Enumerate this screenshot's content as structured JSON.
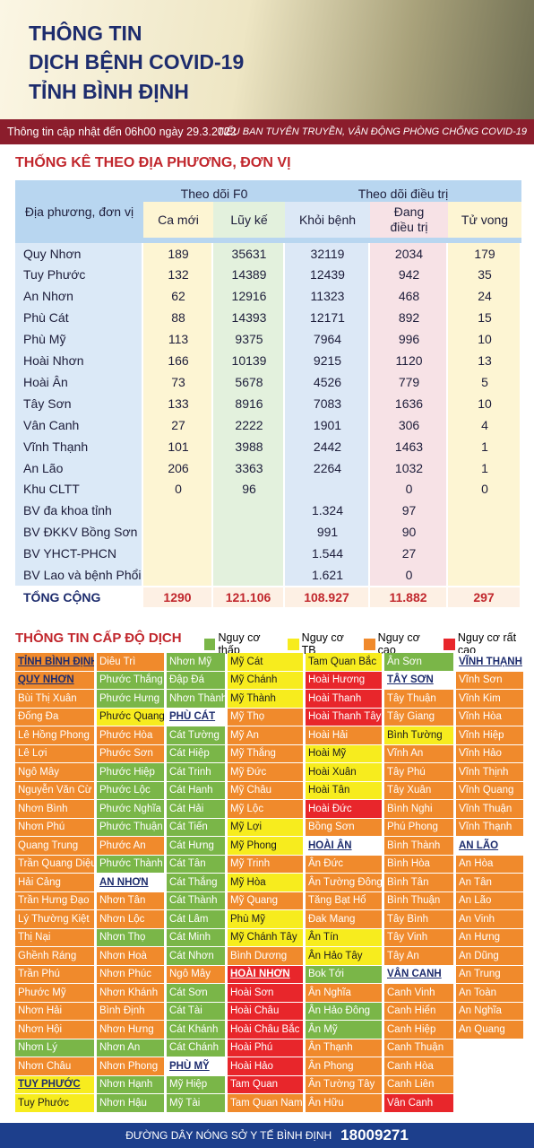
{
  "header": {
    "title_lines": [
      "THÔNG TIN",
      "DỊCH BỆNH COVID-19",
      "TỈNH BÌNH ĐỊNH"
    ],
    "update": "Thông tin cập nhật đến 06h00 ngày 29.3.2022",
    "source": "TIỂU BAN TUYÊN TRUYỀN, VẬN ĐỘNG PHÒNG CHỐNG COVID-19"
  },
  "table": {
    "title": "THỐNG KÊ THEO ĐỊA PHƯƠNG, ĐƠN VỊ",
    "name_header": "Địa phương, đơn vị",
    "group_headers": [
      "Theo dõi F0",
      "Theo dõi điều trị"
    ],
    "col_headers": [
      "Ca mới",
      "Lũy kế",
      "Khỏi bệnh",
      "Đang\nđiều trị",
      "Tử vong"
    ],
    "rows": [
      [
        "Quy Nhơn",
        "189",
        "35631",
        "32119",
        "2034",
        "179"
      ],
      [
        "Tuy Phước",
        "132",
        "14389",
        "12439",
        "942",
        "35"
      ],
      [
        "An Nhơn",
        "62",
        "12916",
        "11323",
        "468",
        "24"
      ],
      [
        "Phù Cát",
        "88",
        "14393",
        "12171",
        "892",
        "15"
      ],
      [
        "Phù Mỹ",
        "113",
        "9375",
        "7964",
        "996",
        "10"
      ],
      [
        "Hoài Nhơn",
        "166",
        "10139",
        "9215",
        "1120",
        "13"
      ],
      [
        "Hoài Ân",
        "73",
        "5678",
        "4526",
        "779",
        "5"
      ],
      [
        "Tây Sơn",
        "133",
        "8916",
        "7083",
        "1636",
        "10"
      ],
      [
        "Vân Canh",
        "27",
        "2222",
        "1901",
        "306",
        "4"
      ],
      [
        "Vĩnh Thạnh",
        "101",
        "3988",
        "2442",
        "1463",
        "1"
      ],
      [
        "An Lão",
        "206",
        "3363",
        "2264",
        "1032",
        "1"
      ],
      [
        "Khu  CLTT",
        "0",
        "96",
        null,
        "0",
        "0"
      ],
      [
        "BV đa khoa tỉnh",
        null,
        null,
        "1.324",
        "97",
        null
      ],
      [
        "BV ĐKKV Bồng Sơn",
        null,
        null,
        "991",
        "90",
        null
      ],
      [
        "BV YHCT-PHCN",
        null,
        null,
        "1.544",
        "27",
        null
      ],
      [
        "BV Lao và bệnh Phổi",
        null,
        null,
        "1.621",
        "0",
        null
      ]
    ],
    "total": [
      "TỔNG CỘNG",
      "1290",
      "121.106",
      "108.927",
      "11.882",
      "297"
    ]
  },
  "levels": {
    "title": "THÔNG TIN CẤP ĐỘ DỊCH",
    "legend": [
      {
        "key": "g",
        "label": "Nguy cơ thấp",
        "color": "#7ab648"
      },
      {
        "key": "y",
        "label": "Nguy cơ TB",
        "color": "#f7ec1e"
      },
      {
        "key": "o",
        "label": "Nguy cơ cao",
        "color": "#f08a2c"
      },
      {
        "key": "r",
        "label": "Nguy cơ rất cao",
        "color": "#e8262b"
      }
    ],
    "columns": [
      [
        [
          "TỈNH BÌNH ĐỊNH",
          "o",
          1
        ],
        [
          "QUY NHƠN",
          "o",
          1
        ],
        [
          "Bùi Thị Xuân",
          "o"
        ],
        [
          "Đống Đa",
          "o"
        ],
        [
          "Lê Hồng Phong",
          "o"
        ],
        [
          "Lê Lợi",
          "o"
        ],
        [
          "Ngô Mây",
          "o"
        ],
        [
          "Nguyễn Văn Cừ",
          "o"
        ],
        [
          "Nhơn Bình",
          "o"
        ],
        [
          "Nhơn Phú",
          "o"
        ],
        [
          "Quang Trung",
          "o"
        ],
        [
          "Trần Quang Diệu",
          "o"
        ],
        [
          "Hải Cảng",
          "o"
        ],
        [
          "Trần Hưng Đạo",
          "o"
        ],
        [
          "Lý Thường Kiệt",
          "o"
        ],
        [
          "Thị Nại",
          "o"
        ],
        [
          "Ghềnh Ráng",
          "o"
        ],
        [
          "Trần Phú",
          "o"
        ],
        [
          "Phước Mỹ",
          "o"
        ],
        [
          "Nhơn Hải",
          "o"
        ],
        [
          "Nhơn Hội",
          "o"
        ],
        [
          "Nhơn Lý",
          "g"
        ],
        [
          "Nhơn Châu",
          "o"
        ],
        [
          "TUY PHƯỚC",
          "y",
          1
        ],
        [
          "Tuy Phước",
          "y"
        ]
      ],
      [
        [
          "Diêu Trì",
          "o"
        ],
        [
          "Phước Thắng",
          "g"
        ],
        [
          "Phước Hưng",
          "g"
        ],
        [
          "Phước Quang",
          "y"
        ],
        [
          "Phước Hòa",
          "o"
        ],
        [
          "Phước Sơn",
          "o"
        ],
        [
          "Phước Hiệp",
          "g"
        ],
        [
          "Phước Lộc",
          "g"
        ],
        [
          "Phước Nghĩa",
          "g"
        ],
        [
          "Phước Thuận",
          "g"
        ],
        [
          "Phước An",
          "o"
        ],
        [
          "Phước Thành",
          "g"
        ],
        [
          "AN NHƠN",
          null,
          1
        ],
        [
          "Nhơn Tân",
          "o"
        ],
        [
          "Nhơn Lộc",
          "o"
        ],
        [
          "Nhơn Thọ",
          "g"
        ],
        [
          "Nhơn Hoà",
          "o"
        ],
        [
          "Nhơn Phúc",
          "o"
        ],
        [
          "Nhơn Khánh",
          "o"
        ],
        [
          "Bình Định",
          "o"
        ],
        [
          "Nhơn Hưng",
          "o"
        ],
        [
          "Nhơn An",
          "g"
        ],
        [
          "Nhơn Phong",
          "o"
        ],
        [
          "Nhơn Hạnh",
          "g"
        ],
        [
          "Nhơn Hậu",
          "g"
        ]
      ],
      [
        [
          "Nhơn Mỹ",
          "g"
        ],
        [
          "Đập Đá",
          "g"
        ],
        [
          "Nhơn Thành",
          "g"
        ],
        [
          "PHÙ CÁT",
          null,
          1
        ],
        [
          "Cát Tường",
          "g"
        ],
        [
          "Cát Hiệp",
          "g"
        ],
        [
          "Cát Trinh",
          "g"
        ],
        [
          "Cát Hanh",
          "g"
        ],
        [
          "Cát Hải",
          "g"
        ],
        [
          "Cát Tiến",
          "g"
        ],
        [
          "Cát Hưng",
          "g"
        ],
        [
          "Cát Tân",
          "g"
        ],
        [
          "Cát Thắng",
          "g"
        ],
        [
          "Cát Thành",
          "g"
        ],
        [
          "Cát Lâm",
          "g"
        ],
        [
          "Cát Minh",
          "g"
        ],
        [
          "Cát Nhơn",
          "g"
        ],
        [
          "Ngô Mây",
          "o"
        ],
        [
          "Cát Sơn",
          "g"
        ],
        [
          "Cát Tài",
          "g"
        ],
        [
          "Cát Khánh",
          "g"
        ],
        [
          "Cát Chánh",
          "g"
        ],
        [
          "PHÙ MỸ",
          null,
          1
        ],
        [
          "Mỹ Hiệp",
          "g"
        ],
        [
          "Mỹ Tài",
          "g"
        ]
      ],
      [
        [
          "Mỹ Cát",
          "y"
        ],
        [
          "Mỹ Chánh",
          "y"
        ],
        [
          "Mỹ Thành",
          "y"
        ],
        [
          "Mỹ Thọ",
          "o"
        ],
        [
          "Mỹ An",
          "o"
        ],
        [
          "Mỹ Thắng",
          "o"
        ],
        [
          "Mỹ Đức",
          "o"
        ],
        [
          "Mỹ Châu",
          "o"
        ],
        [
          "Mỹ Lộc",
          "o"
        ],
        [
          "Mỹ Lợi",
          "y"
        ],
        [
          "Mỹ Phong",
          "y"
        ],
        [
          "Mỹ Trinh",
          "o"
        ],
        [
          "Mỹ Hòa",
          "y"
        ],
        [
          "Mỹ Quang",
          "o"
        ],
        [
          "Phù Mỹ",
          "y"
        ],
        [
          "Mỹ Chánh Tây",
          "y"
        ],
        [
          "Bình Dương",
          "o"
        ],
        [
          "HOÀI NHƠN",
          "r",
          1
        ],
        [
          "Hoài Sơn",
          "r"
        ],
        [
          "Hoài Châu",
          "r"
        ],
        [
          "Hoài Châu Bắc",
          "r"
        ],
        [
          "Hoài Phú",
          "r"
        ],
        [
          "Hoài Hảo",
          "r"
        ],
        [
          "Tam Quan",
          "r"
        ],
        [
          "Tam Quan Nam",
          "o"
        ]
      ],
      [
        [
          "Tam Quan Bắc",
          "y"
        ],
        [
          "Hoài Hương",
          "r"
        ],
        [
          "Hoài Thanh",
          "r"
        ],
        [
          "Hoài Thanh Tây",
          "r"
        ],
        [
          "Hoài Hải",
          "o"
        ],
        [
          "Hoài Mỹ",
          "y"
        ],
        [
          "Hoài Xuân",
          "y"
        ],
        [
          "Hoài Tân",
          "y"
        ],
        [
          "Hoài Đức",
          "r"
        ],
        [
          "Bồng Sơn",
          "o"
        ],
        [
          "HOÀI ÂN",
          null,
          1
        ],
        [
          "Ân Đức",
          "o"
        ],
        [
          "Ân Tường Đông",
          "o"
        ],
        [
          "Tăng Bạt Hổ",
          "o"
        ],
        [
          "Đak Mang",
          "o"
        ],
        [
          "Ân Tín",
          "y"
        ],
        [
          "Ân Hảo Tây",
          "y"
        ],
        [
          "Bok Tới",
          "g"
        ],
        [
          "Ân Nghĩa",
          "o"
        ],
        [
          "Ân Hảo Đông",
          "g"
        ],
        [
          "Ân Mỹ",
          "g"
        ],
        [
          "Ân Thạnh",
          "o"
        ],
        [
          "Ân Phong",
          "o"
        ],
        [
          "Ân Tường Tây",
          "o"
        ],
        [
          "Ân Hữu",
          "o"
        ]
      ],
      [
        [
          "Ân Sơn",
          "g"
        ],
        [
          "TÂY SƠN",
          null,
          1
        ],
        [
          "Tây Thuận",
          "o"
        ],
        [
          "Tây Giang",
          "o"
        ],
        [
          "Bình Tường",
          "y"
        ],
        [
          "Vĩnh An",
          "o"
        ],
        [
          "Tây Phú",
          "o"
        ],
        [
          "Tây Xuân",
          "o"
        ],
        [
          "Bình Nghi",
          "o"
        ],
        [
          "Phú Phong",
          "o"
        ],
        [
          "Bình Thành",
          "o"
        ],
        [
          "Bình Hòa",
          "o"
        ],
        [
          "Bình Tân",
          "o"
        ],
        [
          "Bình Thuận",
          "o"
        ],
        [
          "Tây Bình",
          "o"
        ],
        [
          "Tây Vinh",
          "o"
        ],
        [
          "Tây An",
          "o"
        ],
        [
          "VÂN CANH",
          null,
          1
        ],
        [
          "Canh Vinh",
          "o"
        ],
        [
          "Canh Hiển",
          "o"
        ],
        [
          "Canh Hiệp",
          "o"
        ],
        [
          "Canh Thuận",
          "o"
        ],
        [
          "Canh Hòa",
          "o"
        ],
        [
          "Canh Liên",
          "o"
        ],
        [
          "Vân Canh",
          "r"
        ]
      ],
      [
        [
          "VĨNH THẠNH",
          null,
          1
        ],
        [
          "Vĩnh Sơn",
          "o"
        ],
        [
          "Vĩnh Kim",
          "o"
        ],
        [
          "Vĩnh Hòa",
          "o"
        ],
        [
          "Vĩnh Hiệp",
          "o"
        ],
        [
          "Vĩnh Hảo",
          "o"
        ],
        [
          "Vĩnh Thịnh",
          "o"
        ],
        [
          "Vĩnh Quang",
          "o"
        ],
        [
          "Vĩnh Thuận",
          "o"
        ],
        [
          "Vĩnh Thạnh",
          "o"
        ],
        [
          "AN LÃO",
          null,
          1
        ],
        [
          "An Hòa",
          "o"
        ],
        [
          "An Tân",
          "o"
        ],
        [
          "An Lão",
          "o"
        ],
        [
          "An Vinh",
          "o"
        ],
        [
          "An Hưng",
          "o"
        ],
        [
          "An Dũng",
          "o"
        ],
        [
          "An Trung",
          "o"
        ],
        [
          "An Toàn",
          "o"
        ],
        [
          "An Nghĩa",
          "o"
        ],
        [
          "An Quang",
          "o"
        ]
      ]
    ]
  },
  "footer": {
    "hotline_label": "ĐƯỜNG DÂY NÓNG SỞ Y TẾ BÌNH ĐỊNH",
    "hotline": "18009271"
  }
}
